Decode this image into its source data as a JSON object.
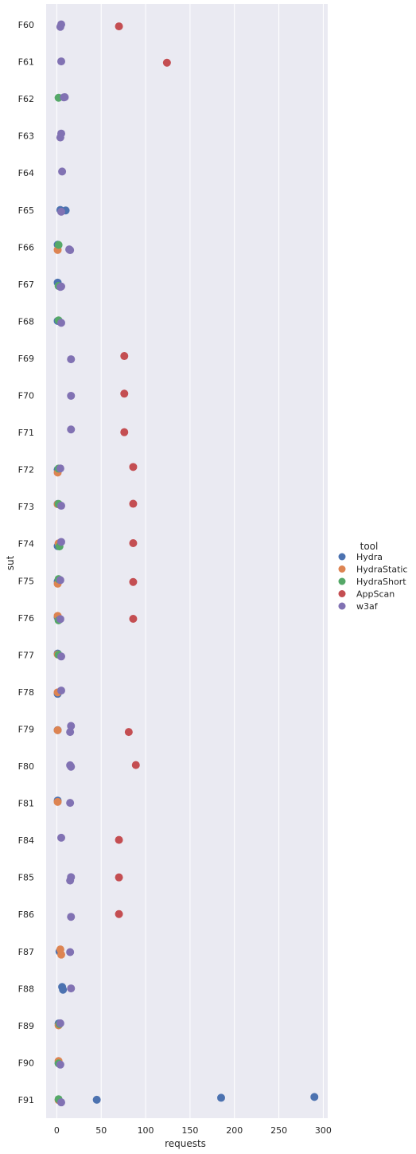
{
  "chart_data": {
    "type": "scatter",
    "xlabel": "requests",
    "ylabel": "sut",
    "xlim": [
      -12,
      305
    ],
    "xticks": [
      0,
      50,
      100,
      150,
      200,
      250,
      300
    ],
    "grid": true,
    "legend": {
      "title": "tool",
      "placement": "center-right"
    },
    "categories": [
      "F60",
      "F61",
      "F62",
      "F63",
      "F64",
      "F65",
      "F66",
      "F67",
      "F68",
      "F69",
      "F70",
      "F71",
      "F72",
      "F73",
      "F74",
      "F75",
      "F76",
      "F77",
      "F78",
      "F79",
      "F80",
      "F81",
      "F84",
      "F85",
      "F86",
      "F87",
      "F88",
      "F89",
      "F90",
      "F91"
    ],
    "series": [
      {
        "name": "Hydra",
        "color": "#4c72b0",
        "points": [
          [
            "F65",
            4
          ],
          [
            "F65",
            10
          ],
          [
            "F66",
            1
          ],
          [
            "F67",
            1
          ],
          [
            "F68",
            1
          ],
          [
            "F72",
            1
          ],
          [
            "F73",
            1
          ],
          [
            "F74",
            1
          ],
          [
            "F75",
            1
          ],
          [
            "F76",
            1
          ],
          [
            "F77",
            1
          ],
          [
            "F78",
            1
          ],
          [
            "F79",
            1
          ],
          [
            "F81",
            1
          ],
          [
            "F87",
            3
          ],
          [
            "F88",
            6
          ],
          [
            "F88",
            7
          ],
          [
            "F89",
            2
          ],
          [
            "F90",
            2
          ],
          [
            "F91",
            45
          ],
          [
            "F91",
            185
          ],
          [
            "F91",
            290
          ]
        ]
      },
      {
        "name": "HydraStatic",
        "color": "#dd8452",
        "points": [
          [
            "F66",
            1
          ],
          [
            "F72",
            1
          ],
          [
            "F73",
            1
          ],
          [
            "F74",
            2
          ],
          [
            "F75",
            1
          ],
          [
            "F76",
            1
          ],
          [
            "F77",
            1
          ],
          [
            "F78",
            1
          ],
          [
            "F79",
            1
          ],
          [
            "F81",
            1
          ],
          [
            "F87",
            4
          ],
          [
            "F87",
            5
          ],
          [
            "F89",
            2
          ],
          [
            "F90",
            2
          ],
          [
            "F91",
            2
          ]
        ]
      },
      {
        "name": "HydraShort",
        "color": "#55a868",
        "points": [
          [
            "F62",
            2
          ],
          [
            "F66",
            2
          ],
          [
            "F67",
            2
          ],
          [
            "F68",
            2
          ],
          [
            "F72",
            2
          ],
          [
            "F73",
            2
          ],
          [
            "F74",
            3
          ],
          [
            "F75",
            2
          ],
          [
            "F76",
            2
          ],
          [
            "F77",
            2
          ],
          [
            "F89",
            3
          ],
          [
            "F90",
            2
          ],
          [
            "F91",
            2
          ]
        ]
      },
      {
        "name": "AppScan",
        "color": "#c44e52",
        "points": [
          [
            "F60",
            70
          ],
          [
            "F61",
            124
          ],
          [
            "F69",
            76
          ],
          [
            "F70",
            76
          ],
          [
            "F71",
            76
          ],
          [
            "F72",
            86
          ],
          [
            "F73",
            86
          ],
          [
            "F74",
            86
          ],
          [
            "F75",
            86
          ],
          [
            "F76",
            86
          ],
          [
            "F79",
            81
          ],
          [
            "F80",
            89
          ],
          [
            "F84",
            70
          ],
          [
            "F85",
            70
          ],
          [
            "F86",
            70
          ]
        ]
      },
      {
        "name": "w3af",
        "color": "#8172b3",
        "points": [
          [
            "F60",
            4
          ],
          [
            "F60",
            5
          ],
          [
            "F61",
            5
          ],
          [
            "F62",
            8
          ],
          [
            "F62",
            9
          ],
          [
            "F63",
            4
          ],
          [
            "F63",
            5
          ],
          [
            "F64",
            6
          ],
          [
            "F65",
            5
          ],
          [
            "F66",
            14
          ],
          [
            "F66",
            15
          ],
          [
            "F67",
            4
          ],
          [
            "F67",
            5
          ],
          [
            "F68",
            5
          ],
          [
            "F69",
            16
          ],
          [
            "F70",
            16
          ],
          [
            "F71",
            16
          ],
          [
            "F72",
            4
          ],
          [
            "F73",
            5
          ],
          [
            "F74",
            5
          ],
          [
            "F75",
            4
          ],
          [
            "F76",
            4
          ],
          [
            "F77",
            5
          ],
          [
            "F78",
            5
          ],
          [
            "F79",
            15
          ],
          [
            "F79",
            16
          ],
          [
            "F80",
            15
          ],
          [
            "F80",
            16
          ],
          [
            "F81",
            15
          ],
          [
            "F84",
            5
          ],
          [
            "F85",
            15
          ],
          [
            "F85",
            16
          ],
          [
            "F86",
            16
          ],
          [
            "F87",
            15
          ],
          [
            "F88",
            16
          ],
          [
            "F89",
            4
          ],
          [
            "F90",
            4
          ],
          [
            "F91",
            5
          ]
        ]
      }
    ]
  }
}
